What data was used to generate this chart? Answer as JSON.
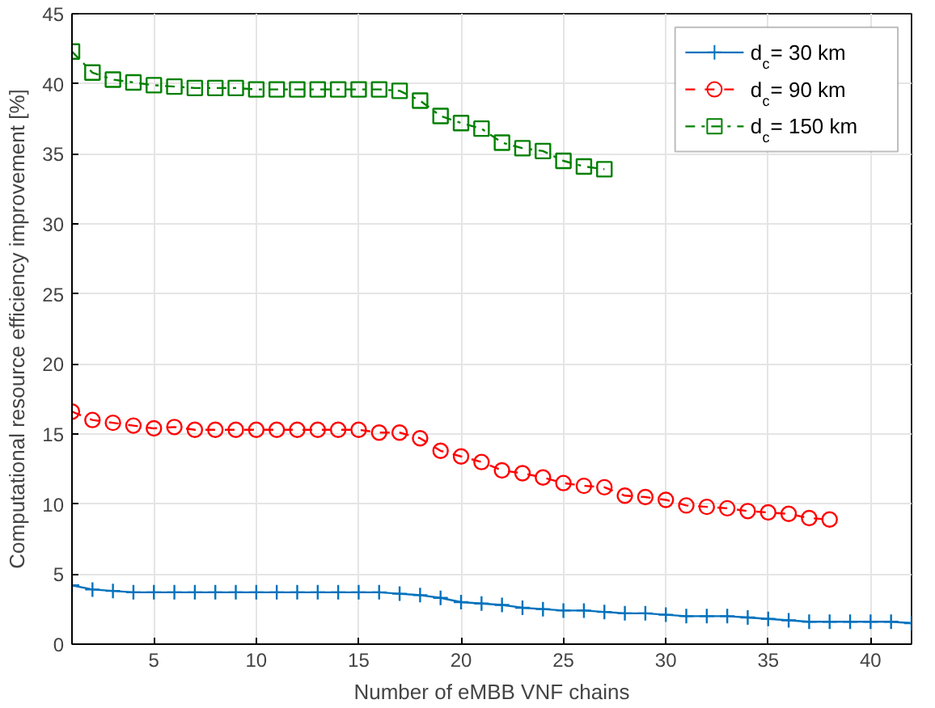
{
  "chart_data": {
    "type": "line",
    "xlabel": "Number of eMBB VNF chains",
    "ylabel": "Computational resource efficiency improvement [%]",
    "xlim": [
      1,
      42
    ],
    "xticks": [
      5,
      10,
      15,
      20,
      25,
      30,
      35,
      40
    ],
    "ylim": [
      0,
      45
    ],
    "yticks": [
      0,
      5,
      10,
      15,
      20,
      25,
      30,
      35,
      40,
      45
    ],
    "grid": true,
    "legend": "top right",
    "series": [
      {
        "name": "d$_{c}$= 30 km",
        "color": "#0072bd",
        "marker": "cross",
        "line_style": "solid",
        "x": [
          1,
          2,
          3,
          4,
          5,
          6,
          7,
          8,
          9,
          10,
          11,
          12,
          13,
          14,
          15,
          16,
          17,
          18,
          19,
          20,
          21,
          22,
          23,
          24,
          25,
          26,
          27,
          28,
          29,
          30,
          31,
          32,
          33,
          34,
          35,
          36,
          37,
          38,
          39,
          40,
          41,
          42
        ],
        "values": [
          4.2,
          3.9,
          3.8,
          3.7,
          3.7,
          3.7,
          3.7,
          3.7,
          3.7,
          3.7,
          3.7,
          3.7,
          3.7,
          3.7,
          3.7,
          3.7,
          3.6,
          3.5,
          3.3,
          3.0,
          2.9,
          2.8,
          2.6,
          2.5,
          2.4,
          2.4,
          2.3,
          2.2,
          2.2,
          2.1,
          2.0,
          2.0,
          2.0,
          1.9,
          1.8,
          1.7,
          1.6,
          1.6,
          1.6,
          1.6,
          1.6,
          1.5
        ]
      },
      {
        "name": "d$_{c}$= 90 km",
        "color": "#ff0000",
        "marker": "circle",
        "line_style": "dashed",
        "x": [
          1,
          2,
          3,
          4,
          5,
          6,
          7,
          8,
          9,
          10,
          11,
          12,
          13,
          14,
          15,
          16,
          17,
          18,
          19,
          20,
          21,
          22,
          23,
          24,
          25,
          26,
          27,
          28,
          29,
          30,
          31,
          32,
          33,
          34,
          35,
          36,
          37,
          38
        ],
        "values": [
          16.6,
          16.0,
          15.8,
          15.6,
          15.4,
          15.5,
          15.3,
          15.3,
          15.3,
          15.3,
          15.3,
          15.3,
          15.3,
          15.3,
          15.3,
          15.1,
          15.1,
          14.7,
          13.8,
          13.4,
          13.0,
          12.4,
          12.2,
          11.9,
          11.5,
          11.3,
          11.2,
          10.6,
          10.5,
          10.3,
          9.9,
          9.8,
          9.7,
          9.5,
          9.4,
          9.3,
          9.0,
          8.9
        ]
      },
      {
        "name": "d$_{c}$= 150 km",
        "color": "#008000",
        "marker": "square",
        "line_style": "dashdot",
        "x": [
          1,
          2,
          3,
          4,
          5,
          6,
          7,
          8,
          9,
          10,
          11,
          12,
          13,
          14,
          15,
          16,
          17,
          18,
          19,
          20,
          21,
          22,
          23,
          24,
          25,
          26,
          27
        ],
        "values": [
          42.3,
          40.8,
          40.3,
          40.1,
          39.9,
          39.8,
          39.7,
          39.7,
          39.7,
          39.6,
          39.6,
          39.6,
          39.6,
          39.6,
          39.6,
          39.6,
          39.5,
          38.8,
          37.7,
          37.2,
          36.8,
          35.8,
          35.4,
          35.2,
          34.5,
          34.1,
          33.9
        ]
      }
    ]
  }
}
